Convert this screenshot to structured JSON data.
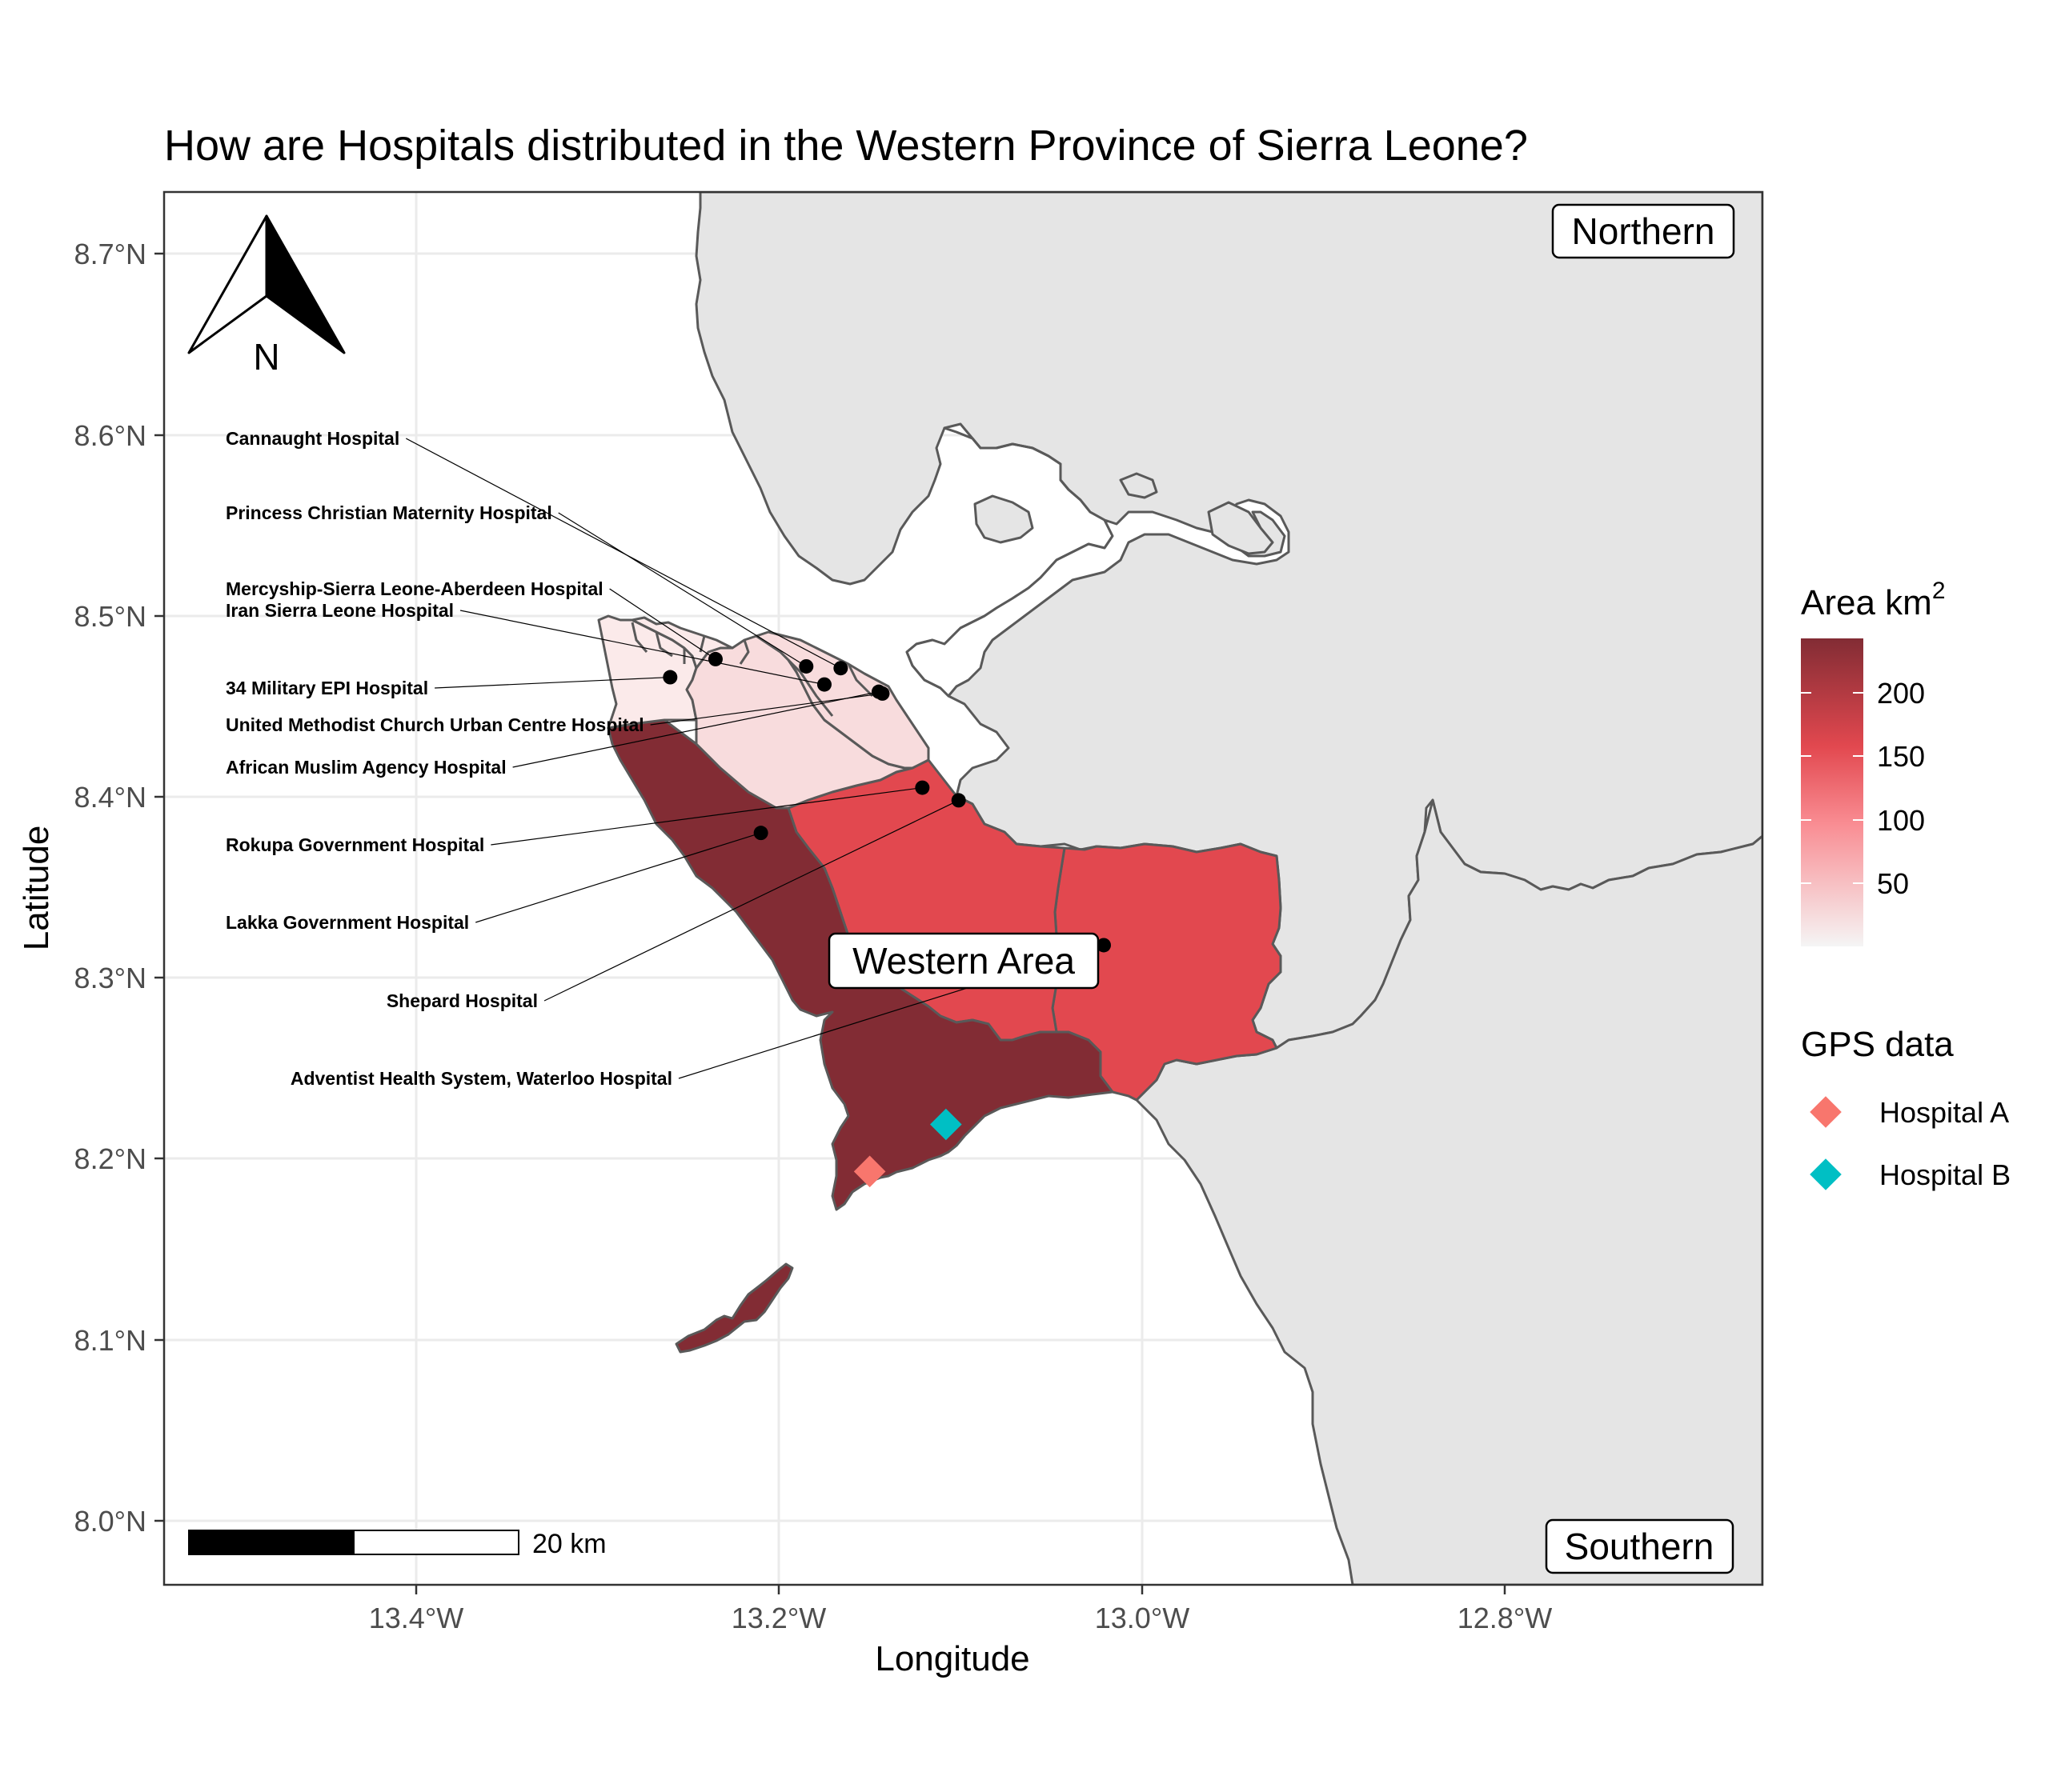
{
  "title": "How are Hospitals distributed in the Western Province of Sierra Leone?",
  "x_axis_title": "Longitude",
  "y_axis_title": "Latitude",
  "x_ticks": [
    "13.4°W",
    "13.2°W",
    "13.0°W",
    "12.8°W"
  ],
  "y_ticks": [
    "8.7°N",
    "8.6°N",
    "8.5°N",
    "8.4°N",
    "8.3°N",
    "8.2°N",
    "8.1°N",
    "8.0°N"
  ],
  "region_labels": {
    "northern": "Northern",
    "western": "Western Area",
    "southern": "Southern"
  },
  "north_arrow_label": "N",
  "scale_bar_label": "20 km",
  "legend_area": {
    "title": "Area km",
    "title_superscript": "2",
    "ticks": [
      "200",
      "150",
      "100",
      "50"
    ],
    "colors": {
      "high": "#822c34",
      "mid": "#e2484f",
      "low": "#f5f5f5"
    }
  },
  "legend_gps": {
    "title": "GPS data",
    "items": [
      {
        "label": "Hospital A",
        "color": "#f8766d"
      },
      {
        "label": "Hospital B",
        "color": "#00bfc4"
      }
    ]
  },
  "hospitals": [
    {
      "name": "Cannaught Hospital",
      "lon": -13.166,
      "lat": 8.471
    },
    {
      "name": "Princess Christian Maternity Hospital",
      "lon": -13.185,
      "lat": 8.472
    },
    {
      "name": "Mercyship-Sierra Leone-Aberdeen Hospital",
      "lon": -13.235,
      "lat": 8.476
    },
    {
      "name": "Iran Sierra Leone Hospital",
      "lon": -13.175,
      "lat": 8.462
    },
    {
      "name": "34 Military EPI Hospital",
      "lon": -13.26,
      "lat": 8.466
    },
    {
      "name": "United Methodist Church Urban Centre Hospital",
      "lon": -13.143,
      "lat": 8.457
    },
    {
      "name": "African Muslim Agency Hospital",
      "lon": -13.145,
      "lat": 8.458
    },
    {
      "name": "Rokupa Government Hospital",
      "lon": -13.121,
      "lat": 8.405
    },
    {
      "name": "Lakka Government Hospital",
      "lon": -13.21,
      "lat": 8.38
    },
    {
      "name": "Shepard Hospital",
      "lon": -13.101,
      "lat": 8.398
    },
    {
      "name": "Adventist Health System, Waterloo Hospital",
      "lon": -13.021,
      "lat": 8.318
    }
  ],
  "gps_points": [
    {
      "name": "Hospital A",
      "lon": -13.15,
      "lat": 8.193
    },
    {
      "name": "Hospital B",
      "lon": -13.108,
      "lat": 8.219
    }
  ],
  "colors": {
    "land_other": "#e5e5e5",
    "western_rural_dark": "#822c34",
    "western_mid": "#e2484f",
    "urban_light": "#f8dcdd",
    "urban_lighter": "#fbeaea",
    "border": "#595959",
    "grid": "#ebebeb"
  }
}
